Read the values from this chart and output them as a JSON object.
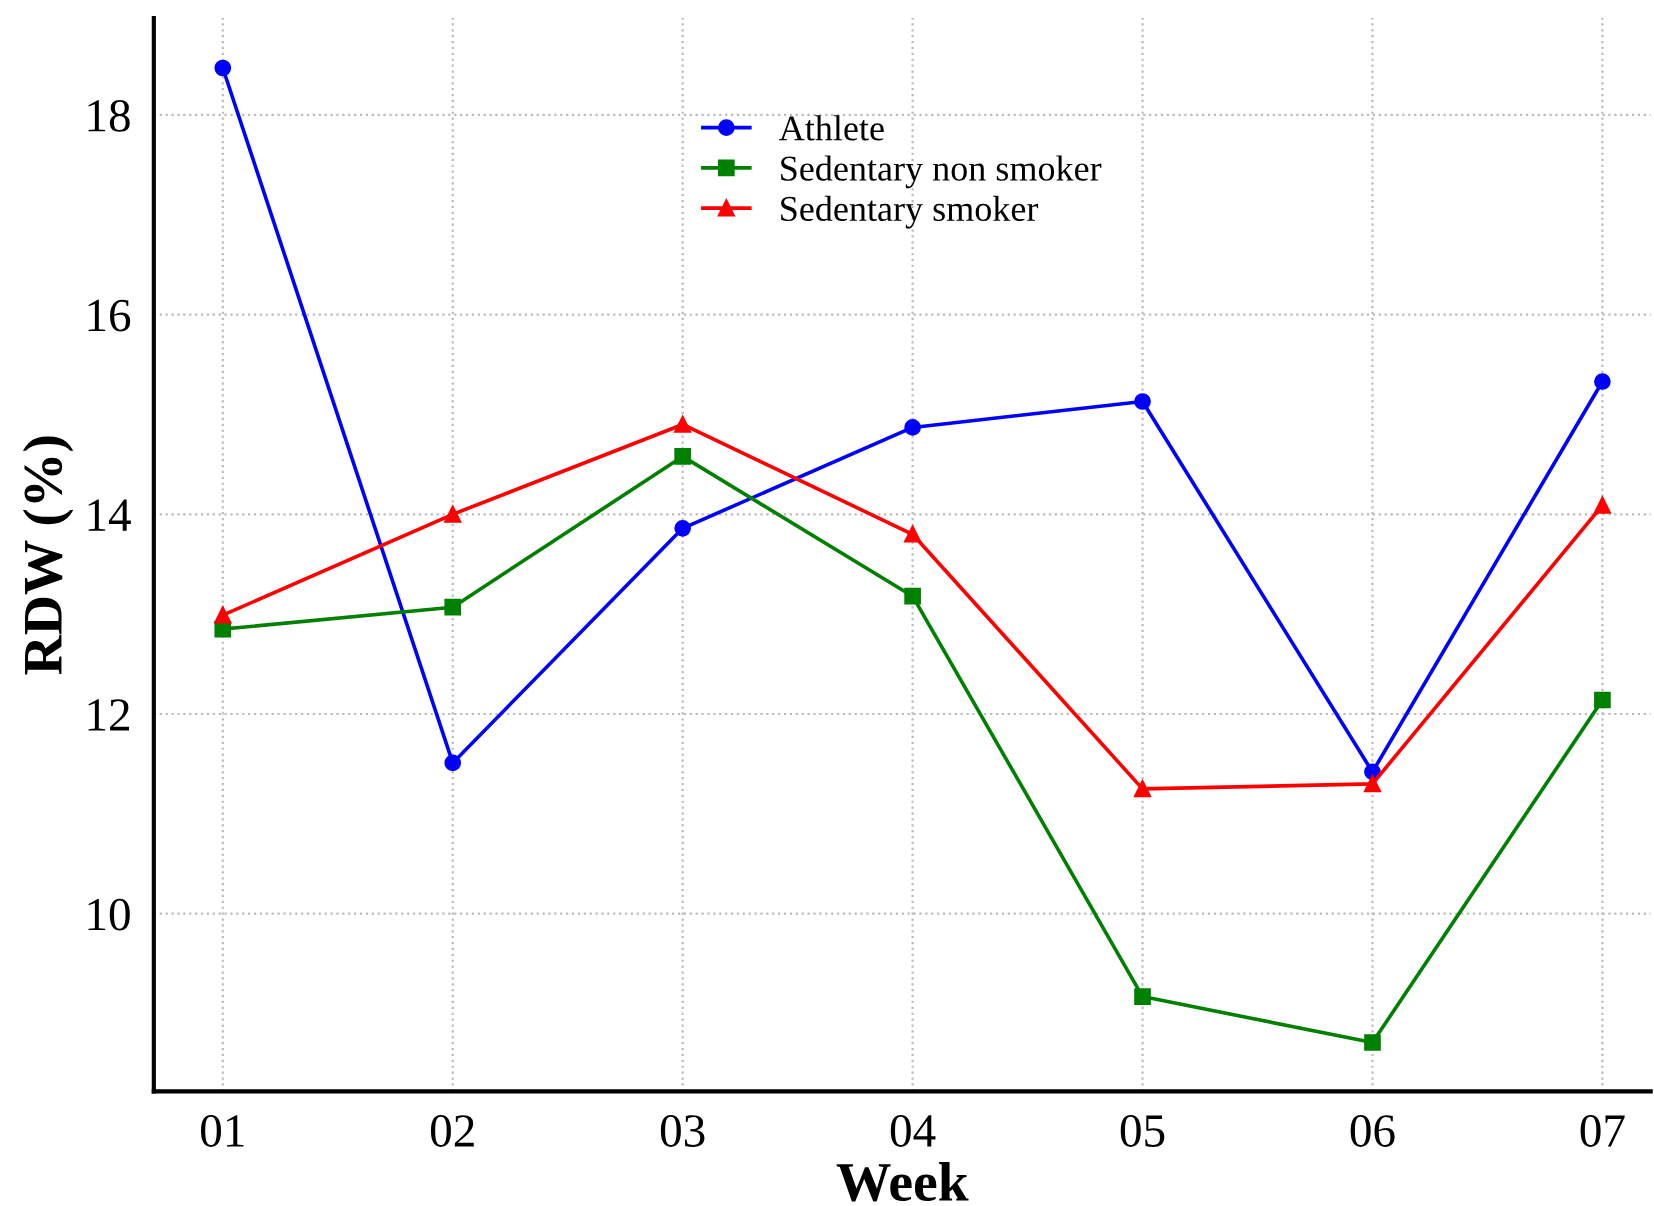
{
  "chart_data": {
    "type": "line",
    "xlabel": "Week",
    "ylabel": "RDW (%)",
    "categories": [
      "01",
      "02",
      "03",
      "04",
      "05",
      "06",
      "07"
    ],
    "series": [
      {
        "name": "Athlete",
        "color": "#0000ff",
        "marker": "circle",
        "values": [
          18.47,
          11.51,
          13.86,
          14.87,
          15.13,
          11.42,
          15.33
        ]
      },
      {
        "name": "Sedentary non smoker",
        "color": "#008000",
        "marker": "square",
        "values": [
          12.85,
          13.07,
          14.58,
          13.18,
          9.17,
          8.71,
          12.14
        ]
      },
      {
        "name": "Sedentary smoker",
        "color": "#ff0000",
        "marker": "triangle",
        "values": [
          12.99,
          14.0,
          14.9,
          13.8,
          11.25,
          11.3,
          14.09
        ]
      }
    ],
    "ylim": [
      8.22,
      18.97
    ],
    "yticks": [
      10,
      12,
      14,
      16,
      18
    ],
    "grid": true,
    "legend": "top",
    "line_style": "solid"
  }
}
